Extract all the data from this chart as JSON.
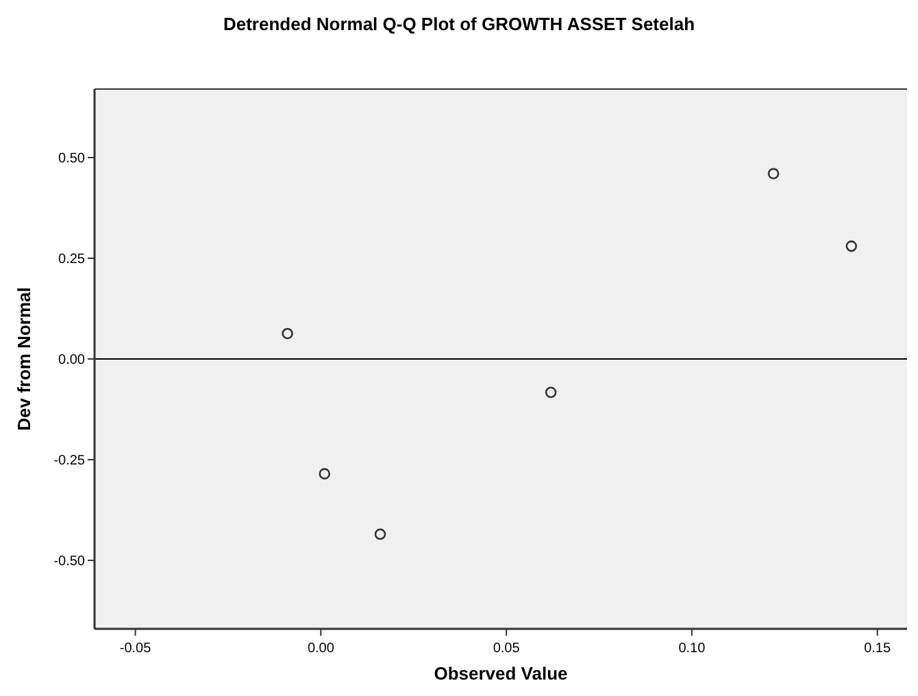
{
  "chart_data": {
    "type": "scatter",
    "title": "Detrended Normal Q-Q Plot of GROWTH ASSET Setelah",
    "xlabel": "Observed Value",
    "ylabel": "Dev from Normal",
    "x": [
      -0.009,
      0.001,
      0.016,
      0.062,
      0.122,
      0.143
    ],
    "series": [
      {
        "color": "#333333",
        "values": [
          0.063,
          -0.285,
          -0.435,
          -0.083,
          0.46,
          0.28
        ]
      }
    ],
    "xlim": [
      -0.061,
      0.158
    ],
    "ylim": [
      -0.67,
      0.67
    ],
    "xticks": [
      {
        "value": -0.05,
        "label": "-0.05"
      },
      {
        "value": 0,
        "label": "0.00"
      },
      {
        "value": 0.05,
        "label": "0.05"
      },
      {
        "value": 0.1,
        "label": "0.10"
      },
      {
        "value": 0.15,
        "label": "0.15"
      }
    ],
    "yticks": [
      {
        "value": -0.5,
        "label": "-0.50"
      },
      {
        "value": -0.25,
        "label": "-0.25"
      },
      {
        "value": 0,
        "label": "0.00"
      },
      {
        "value": 0.25,
        "label": "0.25"
      },
      {
        "value": 0.5,
        "label": "0.50"
      }
    ],
    "ref_lines": [
      {
        "axis": "y",
        "value": 0,
        "color": "#000000"
      }
    ],
    "marker": "circle",
    "grid": false
  }
}
